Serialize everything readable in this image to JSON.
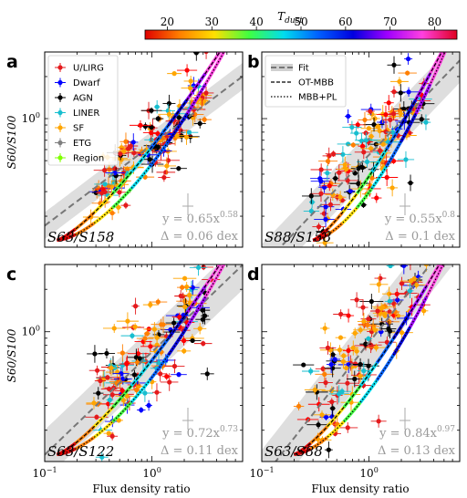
{
  "colorbar": {
    "label": "T_dust",
    "label_main": "T",
    "label_sub": "dust",
    "ticks": [
      "20",
      "30",
      "40",
      "50",
      "60",
      "70",
      "80"
    ],
    "range": [
      15,
      85
    ],
    "colors": [
      "#e00000",
      "#ff7f00",
      "#ffe000",
      "#40ff40",
      "#00ddee",
      "#0060ff",
      "#0000e0",
      "#a000ff",
      "#ff40e0",
      "#e00020"
    ]
  },
  "legend_a": [
    {
      "label": "U/LIRG",
      "color": "#e41a1c"
    },
    {
      "label": "Dwarf",
      "color": "#0000ff"
    },
    {
      "label": "AGN",
      "color": "#000000"
    },
    {
      "label": "LINER",
      "color": "#17becf"
    },
    {
      "label": "SF",
      "color": "#ffa500"
    },
    {
      "label": "ETG",
      "color": "#7f7f7f"
    },
    {
      "label": "Region",
      "color": "#7fff00"
    }
  ],
  "legend_b": [
    {
      "label": "Fit",
      "style": "band"
    },
    {
      "label": "OT-MBB",
      "style": "dashed"
    },
    {
      "label": "MBB+PL",
      "style": "dotted"
    }
  ],
  "panels": [
    {
      "letter": "a",
      "corner": "S63/S158",
      "fit": "y = 0.65x",
      "fit_exp": "0.58",
      "scatter": "Δ = 0.06 dex"
    },
    {
      "letter": "b",
      "corner": "S88/S158",
      "fit": "y = 0.55x",
      "fit_exp": "0.8",
      "scatter": "Δ = 0.1 dex"
    },
    {
      "letter": "c",
      "corner": "S63/S122",
      "fit": "y = 0.72x",
      "fit_exp": "0.73",
      "scatter": "Δ = 0.11 dex"
    },
    {
      "letter": "d",
      "corner": "S63/S88",
      "fit": "y = 0.84x",
      "fit_exp": "0.97",
      "scatter": "Δ = 0.13 dex"
    }
  ],
  "axes": {
    "ylabel": "S60/S100",
    "xlabel": "Flux density ratio",
    "y_tick": "10^0",
    "x_ticks": [
      "10^-1",
      "10^0"
    ]
  },
  "chart_data": [
    {
      "type": "scatter",
      "panel": "a",
      "xscale": "log",
      "yscale": "log",
      "xlim": [
        0.1,
        7
      ],
      "ylim": [
        0.12,
        3
      ],
      "xlabel": "",
      "ylabel": "S60/S100",
      "fit": {
        "a": 0.65,
        "b": 0.58,
        "scatter_dex": 0.06
      },
      "model_curve_start": 0.13
    },
    {
      "type": "scatter",
      "panel": "b",
      "xscale": "log",
      "yscale": "log",
      "xlim": [
        0.1,
        7
      ],
      "ylim": [
        0.12,
        3
      ],
      "fit": {
        "a": 0.55,
        "b": 0.8,
        "scatter_dex": 0.1
      },
      "model_curve_start": 0.3
    },
    {
      "type": "scatter",
      "panel": "c",
      "xscale": "log",
      "yscale": "log",
      "xlim": [
        0.1,
        7
      ],
      "ylim": [
        0.12,
        3
      ],
      "xlabel": "Flux density ratio",
      "ylabel": "S60/S100",
      "fit": {
        "a": 0.72,
        "b": 0.73,
        "scatter_dex": 0.11
      },
      "model_curve_start": 0.13
    },
    {
      "type": "scatter",
      "panel": "d",
      "xscale": "log",
      "yscale": "log",
      "xlim": [
        0.1,
        7
      ],
      "ylim": [
        0.12,
        3
      ],
      "xlabel": "Flux density ratio",
      "fit": {
        "a": 0.84,
        "b": 0.97,
        "scatter_dex": 0.13
      },
      "model_curve_start": 0.2
    }
  ]
}
